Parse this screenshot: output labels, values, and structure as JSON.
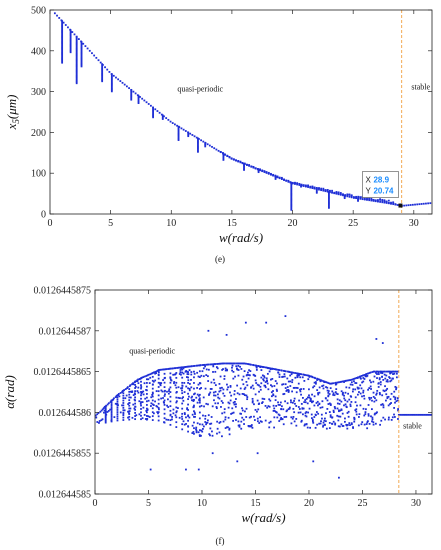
{
  "chart_data": [
    {
      "type": "scatter",
      "panel_label": "(e)",
      "xlabel": "w(rad/s)",
      "ylabel": "x5(μm)",
      "ylabel_main": "x",
      "ylabel_sub": "5",
      "ylabel_rest": "(μm)",
      "xlim": [
        0,
        31.5
      ],
      "ylim": [
        0,
        500
      ],
      "xticks": [
        "0",
        "5",
        "10",
        "15",
        "20",
        "25",
        "30"
      ],
      "yticks": [
        "0",
        "100",
        "200",
        "300",
        "400",
        "500"
      ],
      "marker_color": "#1f2fd6",
      "threshold_color": "#f0a040",
      "threshold_x": 29,
      "annotations": [
        {
          "text": "quasi-periodic",
          "x": 10.5,
          "y": 300
        },
        {
          "text": "stable",
          "x": 29.8,
          "y": 305
        }
      ],
      "datatip": {
        "x_label": "X",
        "x_value": "28.9",
        "y_label": "Y",
        "y_value": "20.74",
        "x": 28.9,
        "y": 20.74
      },
      "trend": {
        "x": [
          0.4,
          5,
          10,
          15,
          20,
          25,
          28,
          29,
          31.5
        ],
        "y": [
          492,
          345,
          225,
          135,
          75,
          40,
          26,
          20,
          27
        ]
      },
      "drops": [
        {
          "x": 1.0,
          "y_min": 370
        },
        {
          "x": 1.7,
          "y_min": 395
        },
        {
          "x": 2.2,
          "y_min": 320
        },
        {
          "x": 2.6,
          "y_min": 360
        },
        {
          "x": 4.3,
          "y_min": 325
        },
        {
          "x": 5.1,
          "y_min": 300
        },
        {
          "x": 6.7,
          "y_min": 280
        },
        {
          "x": 7.3,
          "y_min": 270
        },
        {
          "x": 8.5,
          "y_min": 235
        },
        {
          "x": 9.3,
          "y_min": 230
        },
        {
          "x": 10.6,
          "y_min": 180
        },
        {
          "x": 11.4,
          "y_min": 190
        },
        {
          "x": 12.2,
          "y_min": 150
        },
        {
          "x": 12.8,
          "y_min": 165
        },
        {
          "x": 14.3,
          "y_min": 130
        },
        {
          "x": 15.1,
          "y_min": 135
        },
        {
          "x": 16.0,
          "y_min": 108
        },
        {
          "x": 17.2,
          "y_min": 100
        },
        {
          "x": 18.6,
          "y_min": 85
        },
        {
          "x": 19.9,
          "y_min": 10
        },
        {
          "x": 20.7,
          "y_min": 65
        },
        {
          "x": 22.0,
          "y_min": 52
        },
        {
          "x": 23.0,
          "y_min": 15
        },
        {
          "x": 24.3,
          "y_min": 38
        },
        {
          "x": 25.4,
          "y_min": 30
        }
      ]
    },
    {
      "type": "scatter",
      "panel_label": "(f)",
      "xlabel": "w(rad/s)",
      "ylabel": "α(rad)",
      "xlim": [
        0,
        31.5
      ],
      "ylim": [
        0.012644585,
        0.0126445875
      ],
      "xticks": [
        "0",
        "5",
        "10",
        "15",
        "20",
        "25",
        "30"
      ],
      "yticks": [
        "0.012644585",
        "0.01264458550",
        "0.012644586",
        "0.0126445865",
        "0.012644587",
        "0.0126445875"
      ],
      "ytick_values": [
        0.012644585,
        0.0126445855,
        0.012644586,
        0.0126445865,
        0.012644587,
        0.0126445875
      ],
      "ytick_labels": [
        "0.012644585",
        "0.0126445855",
        "0.012644586",
        "0.0126445865",
        "0.012644587",
        "0.0126445875"
      ],
      "marker_color": "#1f2fd6",
      "threshold_color": "#f0a040",
      "threshold_x": 28.4,
      "stable_level": 0.01264458597,
      "annotations": [
        {
          "text": "quasi-periodic",
          "x": 3.2,
          "y": 0.01264458672
        },
        {
          "text": "stable",
          "x": 28.8,
          "y": 0.0126445858
        }
      ],
      "envelope": {
        "x": [
          0,
          2,
          4,
          6,
          8,
          10,
          12,
          14,
          16,
          18,
          20,
          22,
          24,
          26,
          28
        ],
        "upper": [
          0.01264458595,
          0.0126445862,
          0.0126445864,
          0.01264458652,
          0.01264458655,
          0.01264458658,
          0.0126445866,
          0.0126445866,
          0.01264458655,
          0.0126445865,
          0.01264458645,
          0.01264458635,
          0.0126445864,
          0.0126445865,
          0.0126445865
        ],
        "lower": [
          0.01264458585,
          0.0126445859,
          0.01264458592,
          0.0126445859,
          0.0126445858,
          0.0126445857,
          0.0126445857,
          0.0126445858,
          0.0126445858,
          0.01264458583,
          0.0126445858,
          0.0126445858,
          0.0126445858,
          0.0126445858,
          0.0126445859
        ]
      },
      "outliers": [
        {
          "x": 10.6,
          "y": 0.012644587
        },
        {
          "x": 12.3,
          "y": 0.01264458695
        },
        {
          "x": 14.1,
          "y": 0.0126445871
        },
        {
          "x": 16.0,
          "y": 0.0126445871
        },
        {
          "x": 17.8,
          "y": 0.01264458718
        },
        {
          "x": 8.5,
          "y": 0.0126445853
        },
        {
          "x": 9.7,
          "y": 0.0126445853
        },
        {
          "x": 5.2,
          "y": 0.0126445853
        },
        {
          "x": 22.8,
          "y": 0.0126445852
        },
        {
          "x": 26.3,
          "y": 0.0126445869
        },
        {
          "x": 26.9,
          "y": 0.01264458685
        },
        {
          "x": 15.2,
          "y": 0.0126445855
        },
        {
          "x": 20.4,
          "y": 0.0126445854
        },
        {
          "x": 11.0,
          "y": 0.0126445855
        },
        {
          "x": 13.3,
          "y": 0.0126445854
        }
      ]
    }
  ]
}
